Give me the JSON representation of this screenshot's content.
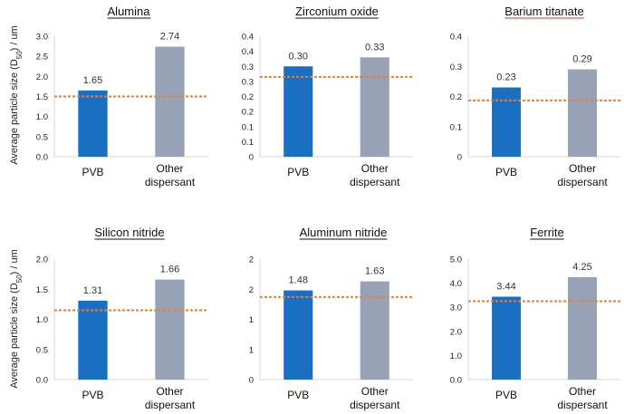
{
  "ylabel_prefix": "Average particle size (D",
  "ylabel_sub": "50",
  "ylabel_suffix": ") / um",
  "chart_data": [
    {
      "type": "bar",
      "title": "Alumina",
      "categories": [
        "PVB",
        "Other dispersant"
      ],
      "values": [
        1.65,
        2.74
      ],
      "value_labels": [
        "1.65",
        "2.74"
      ],
      "reference_line": 1.5,
      "ylim": [
        0,
        3.0
      ],
      "yticks": [
        "0.0",
        "0.5",
        "1.0",
        "1.5",
        "2.0",
        "2.5",
        "3.0"
      ]
    },
    {
      "type": "bar",
      "title": "Zirconium oxide",
      "categories": [
        "PVB",
        "Other dispersant"
      ],
      "values": [
        0.3,
        0.33
      ],
      "value_labels": [
        "0.30",
        "0.33"
      ],
      "reference_line": 0.265,
      "ylim": [
        0,
        0.4
      ],
      "yticks": [
        "0",
        "0.1",
        "0.1",
        "0.2",
        "0.2",
        "0.3",
        "0.3",
        "0.4",
        "0.4"
      ]
    },
    {
      "type": "bar",
      "title": "Barium titanate",
      "categories": [
        "PVB",
        "Other dispersant"
      ],
      "values": [
        0.23,
        0.29
      ],
      "value_labels": [
        "0.23",
        "0.29"
      ],
      "reference_line": 0.187,
      "ylim": [
        0,
        0.4
      ],
      "yticks": [
        "0",
        "0.1",
        "0.2",
        "0.3",
        "0.4"
      ]
    },
    {
      "type": "bar",
      "title": "Silicon nitride",
      "categories": [
        "PVB",
        "Other dispersant"
      ],
      "values": [
        1.31,
        1.66
      ],
      "value_labels": [
        "1.31",
        "1.66"
      ],
      "reference_line": 1.15,
      "ylim": [
        0,
        2.0
      ],
      "yticks": [
        "0.0",
        "0.5",
        "1.0",
        "1.5",
        "2.0"
      ]
    },
    {
      "type": "bar",
      "title": "Aluminum nitride",
      "categories": [
        "PVB",
        "Other dispersant"
      ],
      "values": [
        1.48,
        1.63
      ],
      "value_labels": [
        "1.48",
        "1.63"
      ],
      "reference_line": 1.37,
      "ylim": [
        0,
        2.0
      ],
      "yticks": [
        "0",
        "1",
        "1",
        "2",
        "2"
      ]
    },
    {
      "type": "bar",
      "title": "Ferrite",
      "categories": [
        "PVB",
        "Other dispersant"
      ],
      "values": [
        3.44,
        4.25
      ],
      "value_labels": [
        "3.44",
        "4.25"
      ],
      "reference_line": 3.25,
      "ylim": [
        0,
        5.0
      ],
      "yticks": [
        "0.0",
        "1.0",
        "2.0",
        "3.0",
        "4.0",
        "5.0"
      ]
    }
  ],
  "colors": {
    "pvb": "#1a6fc2",
    "other": "#98a2b6",
    "reference": "#ee7d31",
    "axis": "#d6d6d6"
  }
}
